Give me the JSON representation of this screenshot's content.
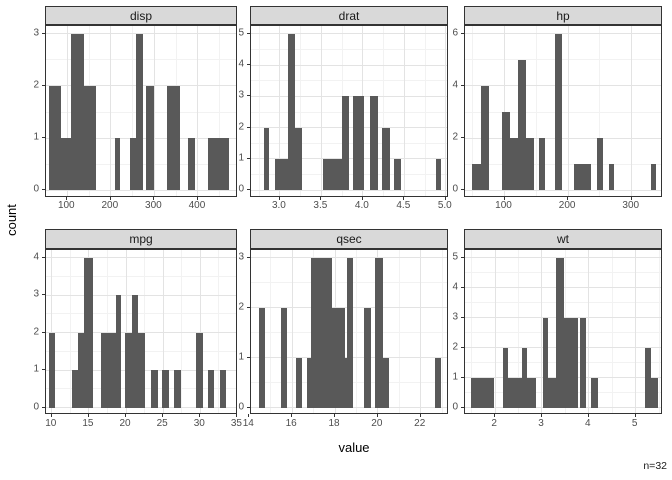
{
  "chart_data": {
    "type": "bar",
    "subtype": "faceted-histograms",
    "xlabel": "value",
    "ylabel": "count",
    "annotation": "n=32",
    "legend": "none",
    "grid": "on",
    "bar_color": "#595959",
    "strip_color": "#d9d9d9",
    "facets": [
      {
        "label": "disp",
        "x_domain": [
          51.1,
          492.0
        ],
        "x_ticks": [
          [
            100,
            "100"
          ],
          [
            200,
            "200"
          ],
          [
            300,
            "300"
          ],
          [
            400,
            "400"
          ]
        ],
        "y_max": 3,
        "y_ticks": [
          [
            0,
            "0"
          ],
          [
            1,
            "1"
          ],
          [
            2,
            "2"
          ],
          [
            3,
            "3"
          ]
        ],
        "bins": [
          [
            58,
            86,
            2
          ],
          [
            86,
            109,
            1
          ],
          [
            109,
            139,
            3
          ],
          [
            139,
            166,
            2
          ],
          [
            210,
            222,
            1
          ],
          [
            243,
            257,
            1
          ],
          [
            257,
            275,
            3
          ],
          [
            280,
            300,
            2
          ],
          [
            328,
            358,
            2
          ],
          [
            377,
            393,
            1
          ],
          [
            423,
            471,
            1
          ]
        ]
      },
      {
        "label": "drat",
        "x_domain": [
          2.6515,
          5.0385
        ],
        "x_ticks": [
          [
            3.0,
            "3.0"
          ],
          [
            3.5,
            "3.5"
          ],
          [
            4.0,
            "4.0"
          ],
          [
            4.5,
            "4.5"
          ],
          [
            5.0,
            "5.0"
          ]
        ],
        "y_max": 5,
        "y_ticks": [
          [
            0,
            "0"
          ],
          [
            1,
            "1"
          ],
          [
            2,
            "2"
          ],
          [
            3,
            "3"
          ],
          [
            4,
            "4"
          ],
          [
            5,
            "5"
          ]
        ],
        "bins": [
          [
            2.81,
            2.87,
            2
          ],
          [
            2.94,
            3.1,
            1
          ],
          [
            3.1,
            3.18,
            5
          ],
          [
            3.18,
            3.27,
            2
          ],
          [
            3.52,
            3.75,
            1
          ],
          [
            3.75,
            3.83,
            3
          ],
          [
            3.88,
            4.01,
            3
          ],
          [
            4.09,
            4.18,
            3
          ],
          [
            4.23,
            4.33,
            2
          ],
          [
            4.38,
            4.46,
            1
          ],
          [
            4.88,
            4.94,
            1
          ]
        ]
      },
      {
        "label": "hp",
        "x_domain": [
          37.9,
          349.1
        ],
        "x_ticks": [
          [
            100,
            "100"
          ],
          [
            200,
            "200"
          ],
          [
            300,
            "300"
          ]
        ],
        "y_max": 6,
        "y_ticks": [
          [
            0,
            "0"
          ],
          [
            2,
            "2"
          ],
          [
            4,
            "4"
          ],
          [
            6,
            "6"
          ]
        ],
        "bins": [
          [
            49,
            63,
            1
          ],
          [
            63,
            76,
            4
          ],
          [
            96,
            109,
            3
          ],
          [
            109,
            121,
            2
          ],
          [
            121,
            134,
            5
          ],
          [
            134,
            146,
            2
          ],
          [
            154,
            164,
            2
          ],
          [
            179,
            190,
            6
          ],
          [
            209,
            236,
            1
          ],
          [
            245,
            255,
            2
          ],
          [
            264,
            272,
            1
          ],
          [
            330,
            338,
            1
          ]
        ]
      },
      {
        "label": "mpg",
        "x_domain": [
          9.225,
          35.075
        ],
        "x_ticks": [
          [
            10,
            "10"
          ],
          [
            15,
            "15"
          ],
          [
            20,
            "20"
          ],
          [
            25,
            "25"
          ],
          [
            30,
            "30"
          ],
          [
            35,
            "35"
          ]
        ],
        "y_max": 4,
        "y_ticks": [
          [
            0,
            "0"
          ],
          [
            1,
            "1"
          ],
          [
            2,
            "2"
          ],
          [
            3,
            "3"
          ],
          [
            4,
            "4"
          ]
        ],
        "bins": [
          [
            9.6,
            10.4,
            2
          ],
          [
            12.7,
            13.6,
            1
          ],
          [
            13.6,
            14.3,
            2
          ],
          [
            14.3,
            15.5,
            4
          ],
          [
            16.6,
            18.6,
            2
          ],
          [
            18.6,
            19.3,
            3
          ],
          [
            19.8,
            20.8,
            2
          ],
          [
            20.8,
            21.6,
            3
          ],
          [
            21.6,
            22.6,
            2
          ],
          [
            23.4,
            24.3,
            1
          ],
          [
            24.9,
            25.8,
            1
          ],
          [
            26.5,
            27.4,
            1
          ],
          [
            29.4,
            30.3,
            2
          ],
          [
            31.0,
            31.9,
            1
          ],
          [
            32.6,
            33.5,
            1
          ]
        ]
      },
      {
        "label": "qsec",
        "x_domain": [
          14.08,
          23.32
        ],
        "x_ticks": [
          [
            14,
            "14"
          ],
          [
            16,
            "16"
          ],
          [
            18,
            "18"
          ],
          [
            20,
            "20"
          ],
          [
            22,
            "22"
          ]
        ],
        "y_max": 3,
        "y_ticks": [
          [
            0,
            "0"
          ],
          [
            1,
            "1"
          ],
          [
            2,
            "2"
          ],
          [
            3,
            "3"
          ]
        ],
        "bins": [
          [
            14.45,
            14.73,
            2
          ],
          [
            15.48,
            15.76,
            2
          ],
          [
            16.18,
            16.46,
            1
          ],
          [
            16.68,
            16.89,
            1
          ],
          [
            16.89,
            17.87,
            3
          ],
          [
            17.87,
            18.45,
            2
          ],
          [
            18.45,
            18.58,
            1
          ],
          [
            18.58,
            18.83,
            3
          ],
          [
            19.34,
            19.68,
            2
          ],
          [
            19.88,
            20.22,
            3
          ],
          [
            20.22,
            20.5,
            1
          ],
          [
            22.68,
            22.96,
            1
          ]
        ]
      },
      {
        "label": "wt",
        "x_domain": [
          1.3565,
          5.5835
        ],
        "x_ticks": [
          [
            2,
            "2"
          ],
          [
            3,
            "3"
          ],
          [
            4,
            "4"
          ],
          [
            5,
            "5"
          ]
        ],
        "y_max": 5,
        "y_ticks": [
          [
            0,
            "0"
          ],
          [
            1,
            "1"
          ],
          [
            2,
            "2"
          ],
          [
            3,
            "3"
          ],
          [
            4,
            "4"
          ],
          [
            5,
            "5"
          ]
        ],
        "bins": [
          [
            1.49,
            1.98,
            1
          ],
          [
            2.16,
            2.27,
            2
          ],
          [
            2.27,
            2.57,
            1
          ],
          [
            2.57,
            2.67,
            2
          ],
          [
            2.67,
            2.87,
            1
          ],
          [
            3.02,
            3.12,
            3
          ],
          [
            3.12,
            3.3,
            1
          ],
          [
            3.3,
            3.47,
            5
          ],
          [
            3.47,
            3.77,
            3
          ],
          [
            3.81,
            3.94,
            3
          ],
          [
            4.05,
            4.19,
            1
          ],
          [
            5.19,
            5.33,
            2
          ],
          [
            5.33,
            5.47,
            1
          ]
        ]
      }
    ]
  }
}
